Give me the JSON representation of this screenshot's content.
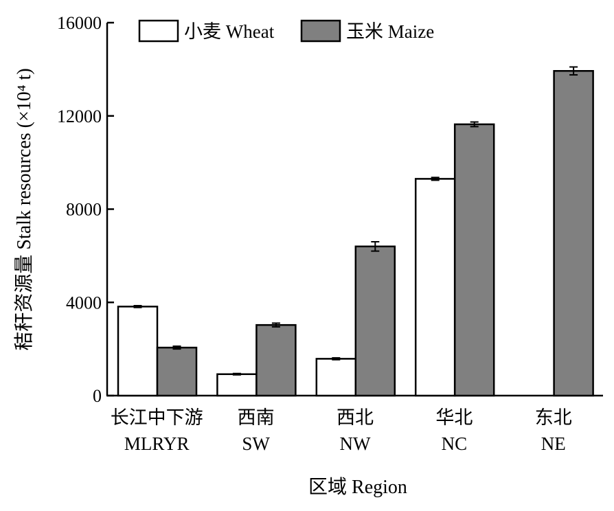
{
  "chart_data": {
    "type": "bar",
    "categories": [
      {
        "zh": "长江中下游",
        "en": "MLRYR"
      },
      {
        "zh": "西南",
        "en": "SW"
      },
      {
        "zh": "西北",
        "en": "NW"
      },
      {
        "zh": "华北",
        "en": "NC"
      },
      {
        "zh": "东北",
        "en": "NE"
      }
    ],
    "series": [
      {
        "name": "小麦 Wheat",
        "color": "#ffffff",
        "values": [
          3820,
          920,
          1580,
          9300,
          0
        ],
        "errors": [
          40,
          30,
          40,
          60,
          0
        ]
      },
      {
        "name": "玉米 Maize",
        "color": "#808080",
        "values": [
          2060,
          3030,
          6400,
          11640,
          13930
        ],
        "errors": [
          60,
          80,
          200,
          100,
          170
        ]
      }
    ],
    "ylim": [
      0,
      16000
    ],
    "yticks": [
      "0",
      "4000",
      "8000",
      "12000",
      "16000"
    ],
    "ytick_values": [
      0,
      4000,
      8000,
      12000,
      16000
    ],
    "xlabel": "区域 Region",
    "ylabel": "秸秆资源量 Stalk resources (×10⁴ t)",
    "legend_position": "top",
    "grid": false
  }
}
